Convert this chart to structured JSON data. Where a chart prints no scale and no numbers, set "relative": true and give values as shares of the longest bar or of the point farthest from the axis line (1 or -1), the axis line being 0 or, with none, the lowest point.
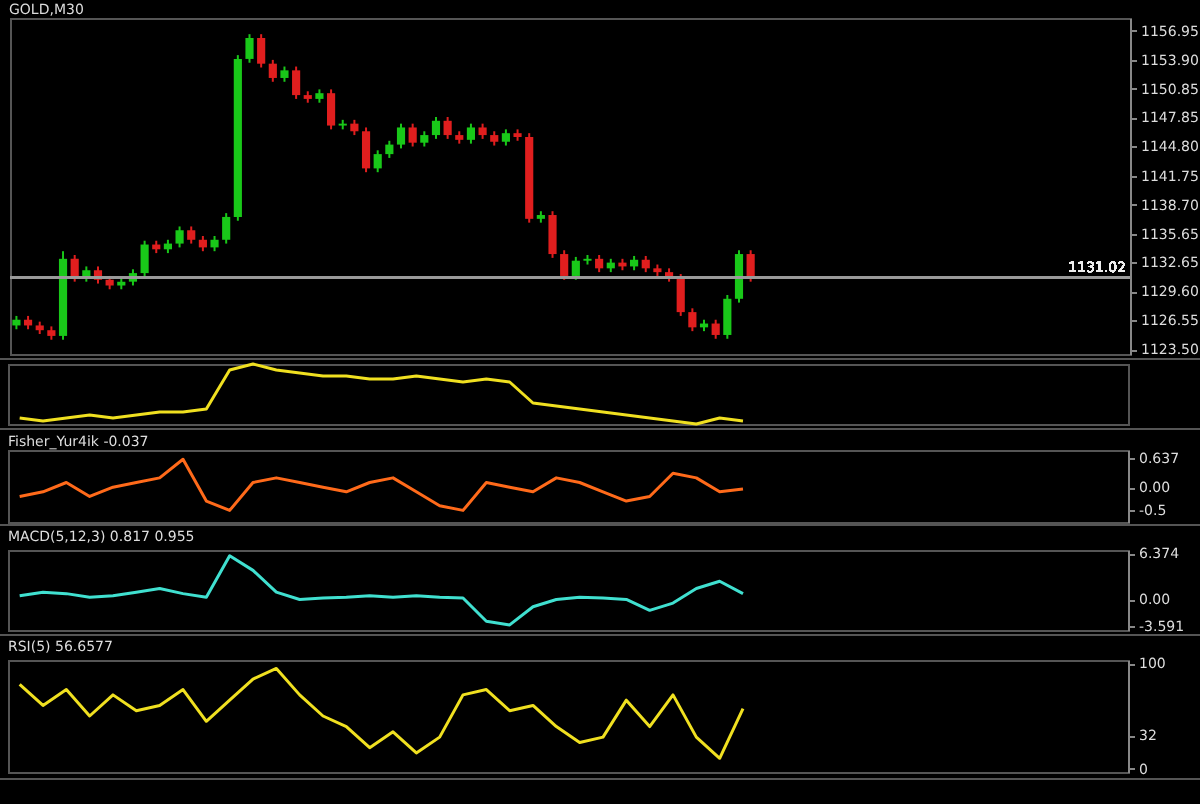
{
  "chart_data": [
    {
      "type": "candlestick",
      "title": "GOLD,M30",
      "tick_labels": "y",
      "grid": false,
      "categories": [
        null,
        null,
        null,
        null,
        null,
        null,
        null,
        null,
        null,
        null,
        null,
        null,
        null,
        null,
        null,
        null,
        null,
        null,
        null,
        null,
        null,
        null,
        null,
        null,
        null,
        null,
        null,
        null,
        null,
        null,
        null,
        null,
        null,
        null,
        null,
        null,
        null,
        null,
        null,
        null,
        null,
        null,
        null,
        null,
        null,
        null,
        null,
        null,
        null,
        null,
        null,
        null,
        null,
        null,
        null,
        null,
        null,
        null,
        null,
        null,
        null,
        null,
        null,
        null,
        null,
        null,
        null,
        null,
        null,
        null,
        null,
        null,
        null,
        null,
        null,
        null,
        null,
        null,
        null,
        null,
        null,
        null,
        null,
        null,
        null,
        null,
        null,
        null,
        null,
        null,
        null,
        null,
        null,
        null,
        null,
        null
      ],
      "ohlc": [
        [
          1126.0,
          1127.0,
          1125.6,
          1126.6
        ],
        [
          1126.6,
          1127.0,
          1125.6,
          1126.0
        ],
        [
          1126.0,
          1126.4,
          1125.1,
          1125.5
        ],
        [
          1125.5,
          1125.9,
          1124.5,
          1124.9
        ],
        [
          1124.9,
          1133.8,
          1124.5,
          1133.0
        ],
        [
          1133.0,
          1133.4,
          1130.6,
          1131.0
        ],
        [
          1131.0,
          1132.2,
          1130.6,
          1131.8
        ],
        [
          1131.8,
          1132.2,
          1130.4,
          1130.8
        ],
        [
          1130.8,
          1131.2,
          1129.8,
          1130.2
        ],
        [
          1130.2,
          1131.0,
          1129.8,
          1130.6
        ],
        [
          1130.6,
          1131.9,
          1130.2,
          1131.5
        ],
        [
          1131.5,
          1134.9,
          1131.1,
          1134.5
        ],
        [
          1134.5,
          1134.9,
          1133.6,
          1134.0
        ],
        [
          1134.0,
          1135.0,
          1133.6,
          1134.6
        ],
        [
          1134.6,
          1136.4,
          1134.2,
          1136.0
        ],
        [
          1136.0,
          1136.4,
          1134.6,
          1135.0
        ],
        [
          1135.0,
          1135.4,
          1133.8,
          1134.2
        ],
        [
          1134.2,
          1135.4,
          1133.8,
          1135.0
        ],
        [
          1135.0,
          1137.8,
          1134.6,
          1137.4
        ],
        [
          1137.4,
          1154.4,
          1137.0,
          1154.0
        ],
        [
          1154.0,
          1156.6,
          1153.6,
          1156.2
        ],
        [
          1156.2,
          1156.6,
          1153.1,
          1153.5
        ],
        [
          1153.5,
          1153.9,
          1151.6,
          1152.0
        ],
        [
          1152.0,
          1153.2,
          1151.6,
          1152.8
        ],
        [
          1152.8,
          1153.2,
          1149.8,
          1150.2
        ],
        [
          1150.2,
          1150.6,
          1149.4,
          1149.8
        ],
        [
          1149.8,
          1150.8,
          1149.4,
          1150.4
        ],
        [
          1150.4,
          1150.8,
          1146.6,
          1147.0
        ],
        [
          1147.0,
          1147.6,
          1146.6,
          1147.2
        ],
        [
          1147.2,
          1147.6,
          1146.0,
          1146.4
        ],
        [
          1146.4,
          1146.8,
          1142.1,
          1142.5
        ],
        [
          1142.5,
          1144.4,
          1142.1,
          1144.0
        ],
        [
          1144.0,
          1145.4,
          1143.6,
          1145.0
        ],
        [
          1145.0,
          1147.2,
          1144.6,
          1146.8
        ],
        [
          1146.8,
          1147.2,
          1144.8,
          1145.2
        ],
        [
          1145.2,
          1146.4,
          1144.8,
          1146.0
        ],
        [
          1146.0,
          1147.9,
          1145.6,
          1147.5
        ],
        [
          1147.5,
          1147.9,
          1145.6,
          1146.0
        ],
        [
          1146.0,
          1146.4,
          1145.1,
          1145.5
        ],
        [
          1145.5,
          1147.2,
          1145.1,
          1146.8
        ],
        [
          1146.8,
          1147.2,
          1145.6,
          1146.0
        ],
        [
          1146.0,
          1146.4,
          1144.9,
          1145.3
        ],
        [
          1145.3,
          1146.6,
          1144.9,
          1146.2
        ],
        [
          1146.2,
          1146.6,
          1145.4,
          1145.8
        ],
        [
          1145.8,
          1146.2,
          1136.8,
          1137.2
        ],
        [
          1137.2,
          1138.0,
          1136.8,
          1137.6
        ],
        [
          1137.6,
          1138.0,
          1133.1,
          1133.5
        ],
        [
          1133.5,
          1133.9,
          1130.8,
          1131.2
        ],
        [
          1131.2,
          1133.2,
          1130.8,
          1132.8
        ],
        [
          1132.8,
          1133.4,
          1132.4,
          1133.0
        ],
        [
          1133.0,
          1133.4,
          1131.6,
          1132.0
        ],
        [
          1132.0,
          1133.0,
          1131.6,
          1132.6
        ],
        [
          1132.6,
          1133.0,
          1131.8,
          1132.2
        ],
        [
          1132.2,
          1133.3,
          1131.8,
          1132.9
        ],
        [
          1132.9,
          1133.3,
          1131.6,
          1132.0
        ],
        [
          1132.0,
          1132.4,
          1131.2,
          1131.6
        ],
        [
          1131.6,
          1132.0,
          1130.6,
          1131.0
        ],
        [
          1131.0,
          1131.4,
          1127.0,
          1127.4
        ],
        [
          1127.4,
          1127.8,
          1125.4,
          1125.8
        ],
        [
          1125.8,
          1126.6,
          1125.4,
          1126.2
        ],
        [
          1126.2,
          1126.6,
          1124.6,
          1125.0
        ],
        [
          1125.0,
          1129.2,
          1124.6,
          1128.8
        ],
        [
          1128.8,
          1133.9,
          1128.4,
          1133.5
        ],
        [
          1133.5,
          1133.9,
          1130.6,
          1131.0
        ],
        null,
        null,
        null,
        null,
        null,
        null,
        null,
        null,
        null,
        null,
        null,
        null,
        null,
        null,
        null,
        null,
        null,
        null,
        null,
        null,
        null,
        null,
        null,
        null,
        null,
        null,
        null,
        null,
        null,
        null,
        null,
        null
      ],
      "colors": [
        "#19c819",
        "#e01e1e",
        "#e01e1e",
        "#e01e1e",
        "#19c819",
        "#e01e1e",
        "#19c819",
        "#e01e1e",
        "#e01e1e",
        "#19c819",
        "#19c819",
        "#19c819",
        "#e01e1e",
        "#19c819",
        "#19c819",
        "#e01e1e",
        "#e01e1e",
        "#19c819",
        "#19c819",
        "#19c819",
        "#19c819",
        "#e01e1e",
        "#e01e1e",
        "#19c819",
        "#e01e1e",
        "#e01e1e",
        "#19c819",
        "#e01e1e",
        "#19c819",
        "#e01e1e",
        "#e01e1e",
        "#19c819",
        "#19c819",
        "#19c819",
        "#e01e1e",
        "#19c819",
        "#19c819",
        "#e01e1e",
        "#e01e1e",
        "#19c819",
        "#e01e1e",
        "#e01e1e",
        "#19c819",
        "#e01e1e",
        "#e01e1e",
        "#19c819",
        "#e01e1e",
        "#e01e1e",
        "#19c819",
        "#19c819",
        "#e01e1e",
        "#19c819",
        "#e01e1e",
        "#19c819",
        "#e01e1e",
        "#e01e1e",
        "#e01e1e",
        "#e01e1e",
        "#e01e1e",
        "#19c819",
        "#e01e1e",
        "#19c819",
        "#19c819",
        "#e01e1e",
        null,
        null,
        null,
        null,
        null,
        null,
        null,
        null,
        null,
        null,
        null,
        null,
        null,
        null,
        null,
        null,
        null,
        null,
        null,
        null,
        null,
        null,
        null,
        null,
        null,
        null,
        null,
        null,
        null,
        null,
        null,
        null
      ],
      "ylim": [
        1123,
        1158.3
      ],
      "yticks": [
        {
          "value": 1123.5,
          "label": "1123.50"
        },
        {
          "value": 1126.55,
          "label": "1126.55"
        },
        {
          "value": 1129.6,
          "label": "1129.60"
        },
        {
          "value": 1132.65,
          "label": "1132.65"
        },
        {
          "value": 1135.65,
          "label": "1135.65"
        },
        {
          "value": 1138.7,
          "label": "1138.70"
        },
        {
          "value": 1141.75,
          "label": "1141.75"
        },
        {
          "value": 1144.8,
          "label": "1144.80"
        },
        {
          "value": 1147.85,
          "label": "1147.85"
        },
        {
          "value": 1150.85,
          "label": "1150.85"
        },
        {
          "value": 1153.9,
          "label": "1153.90"
        },
        {
          "value": 1156.95,
          "label": "1156.95"
        }
      ],
      "ref_lines": [
        {
          "axis": "y",
          "value": 1131.02,
          "label": "1131.02",
          "color": "#9a9a9a"
        }
      ]
    },
    {
      "type": "line",
      "relative": true,
      "tick_labels": false,
      "categories": [
        null,
        null,
        null,
        null,
        null,
        null,
        null,
        null,
        null,
        null,
        null,
        null,
        null,
        null,
        null,
        null,
        null,
        null,
        null,
        null,
        null,
        null,
        null,
        null,
        null,
        null,
        null,
        null,
        null,
        null,
        null,
        null,
        null,
        null,
        null,
        null,
        null,
        null,
        null,
        null,
        null,
        null,
        null,
        null,
        null,
        null,
        null,
        null
      ],
      "series": [
        {
          "color": "#f0e020",
          "values": [
            0.1,
            0.05,
            0.1,
            0.15,
            0.1,
            0.15,
            0.2,
            0.2,
            0.25,
            0.9,
            1,
            0.9,
            0.85,
            0.8,
            0.8,
            0.75,
            0.75,
            0.8,
            0.75,
            0.7,
            0.75,
            0.7,
            0.35,
            0.3,
            0.25,
            0.2,
            0.15,
            0.1,
            0.05,
            0,
            0.1,
            0.05,
            null,
            null,
            null,
            null,
            null,
            null,
            null,
            null,
            null,
            null,
            null,
            null,
            null,
            null,
            null,
            null
          ]
        }
      ]
    },
    {
      "type": "line",
      "title": "Fisher_Yur4ik -0.037",
      "tick_labels": "y",
      "ylim": [
        -0.75,
        0.8
      ],
      "yticks": [
        -0.5,
        {
          "value": 0,
          "label": "0.00"
        },
        0.637
      ],
      "categories": [
        null,
        null,
        null,
        null,
        null,
        null,
        null,
        null,
        null,
        null,
        null,
        null,
        null,
        null,
        null,
        null,
        null,
        null,
        null,
        null,
        null,
        null,
        null,
        null,
        null,
        null,
        null,
        null,
        null,
        null,
        null,
        null,
        null,
        null,
        null,
        null,
        null,
        null,
        null,
        null,
        null,
        null,
        null,
        null,
        null,
        null,
        null,
        null
      ],
      "series": [
        {
          "color": "#ff6a1a",
          "values": [
            -0.2,
            -0.1,
            0.1,
            -0.2,
            0,
            0.1,
            0.2,
            0.6,
            -0.3,
            -0.5,
            0.1,
            0.2,
            0.1,
            0,
            -0.1,
            0.1,
            0.2,
            -0.1,
            -0.4,
            -0.5,
            0.1,
            0,
            -0.1,
            0.2,
            0.1,
            -0.1,
            -0.3,
            -0.2,
            0.3,
            0.2,
            -0.1,
            -0.04,
            null,
            null,
            null,
            null,
            null,
            null,
            null,
            null,
            null,
            null,
            null,
            null,
            null,
            null,
            null,
            null
          ]
        }
      ]
    },
    {
      "type": "line",
      "title": "MACD(5,12,3) 0.817 0.955",
      "tick_labels": "y",
      "ylim": [
        -4.2,
        6.8
      ],
      "yticks": [
        -3.591,
        {
          "value": 0,
          "label": "0.00"
        },
        6.374
      ],
      "categories": [
        null,
        null,
        null,
        null,
        null,
        null,
        null,
        null,
        null,
        null,
        null,
        null,
        null,
        null,
        null,
        null,
        null,
        null,
        null,
        null,
        null,
        null,
        null,
        null,
        null,
        null,
        null,
        null,
        null,
        null,
        null,
        null,
        null,
        null,
        null,
        null,
        null,
        null,
        null,
        null,
        null,
        null,
        null,
        null,
        null,
        null,
        null,
        null
      ],
      "series": [
        {
          "color": "#40e0d0",
          "values": [
            0.5,
            1,
            0.8,
            0.3,
            0.5,
            1,
            1.5,
            0.8,
            0.3,
            6,
            4,
            1,
            0,
            0.2,
            0.3,
            0.5,
            0.3,
            0.5,
            0.3,
            0.2,
            -3,
            -3.5,
            -1,
            0,
            0.3,
            0.2,
            0,
            -1.5,
            -0.5,
            1.5,
            2.5,
            0.8,
            null,
            null,
            null,
            null,
            null,
            null,
            null,
            null,
            null,
            null,
            null,
            null,
            null,
            null,
            null,
            null
          ]
        }
      ]
    },
    {
      "type": "line",
      "title": "RSI(5) 56.6577",
      "tick_labels": "y",
      "ylim": [
        -3,
        103
      ],
      "yticks": [
        0,
        32,
        100
      ],
      "categories": [
        null,
        null,
        null,
        null,
        null,
        null,
        null,
        null,
        null,
        null,
        null,
        null,
        null,
        null,
        null,
        null,
        null,
        null,
        null,
        null,
        null,
        null,
        null,
        null,
        null,
        null,
        null,
        null,
        null,
        null,
        null,
        null,
        null,
        null,
        null,
        null,
        null,
        null,
        null,
        null,
        null,
        null,
        null,
        null,
        null,
        null,
        null,
        null
      ],
      "series": [
        {
          "color": "#f0e020",
          "values": [
            80,
            60,
            75,
            50,
            70,
            55,
            60,
            75,
            45,
            65,
            85,
            95,
            70,
            50,
            40,
            20,
            35,
            15,
            30,
            70,
            75,
            55,
            60,
            40,
            25,
            30,
            65,
            40,
            70,
            30,
            10,
            57,
            null,
            null,
            null,
            null,
            null,
            null,
            null,
            null,
            null,
            null,
            null,
            null,
            null,
            null,
            null,
            null
          ]
        }
      ]
    }
  ]
}
